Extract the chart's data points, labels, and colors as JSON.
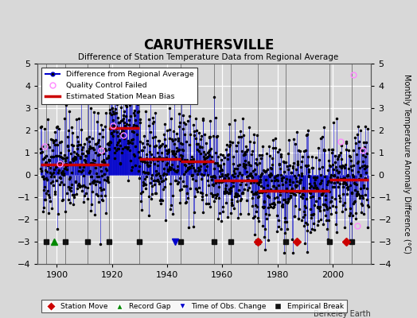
{
  "title": "CARUTHERSVILLE",
  "subtitle": "Difference of Station Temperature Data from Regional Average",
  "ylabel_right": "Monthly Temperature Anomaly Difference (°C)",
  "xlim": [
    1893,
    2014
  ],
  "ylim": [
    -4,
    5
  ],
  "yticks": [
    -4,
    -3,
    -2,
    -1,
    0,
    1,
    2,
    3,
    4,
    5
  ],
  "xticks": [
    1900,
    1920,
    1940,
    1960,
    1980,
    2000
  ],
  "background_color": "#d8d8d8",
  "plot_bg_color": "#d8d8d8",
  "grid_color": "#ffffff",
  "line_color": "#0000cc",
  "dot_color": "#000000",
  "bias_color": "#cc0000",
  "qc_color": "#ff88ff",
  "station_move_color": "#cc0000",
  "record_gap_color": "#008800",
  "tobs_color": "#0000cc",
  "emp_break_color": "#111111",
  "seed": 42,
  "start_year": 1894,
  "end_year": 2013,
  "bias_segments": [
    {
      "start": 1894,
      "end": 1919,
      "bias": 0.45
    },
    {
      "start": 1919,
      "end": 1930,
      "bias": 2.1
    },
    {
      "start": 1930,
      "end": 1945,
      "bias": 0.7
    },
    {
      "start": 1945,
      "end": 1957,
      "bias": 0.6
    },
    {
      "start": 1957,
      "end": 1973,
      "bias": -0.25
    },
    {
      "start": 1973,
      "end": 1983,
      "bias": -0.7
    },
    {
      "start": 1983,
      "end": 1999,
      "bias": -0.7
    },
    {
      "start": 1999,
      "end": 2009,
      "bias": -0.2
    },
    {
      "start": 2009,
      "end": 2013,
      "bias": -0.2
    }
  ],
  "station_moves": [
    1973,
    1987,
    2005
  ],
  "record_gaps": [
    1899
  ],
  "tobs_changes": [
    1943
  ],
  "emp_breaks": [
    1896,
    1903,
    1911,
    1919,
    1930,
    1945,
    1957,
    1963,
    1973,
    1983,
    1999,
    2007
  ],
  "qc_fails": [
    {
      "year": 1895.5,
      "val": 1.3
    },
    {
      "year": 1901.0,
      "val": 0.5
    },
    {
      "year": 1916.0,
      "val": 1.1
    },
    {
      "year": 1920.5,
      "val": 2.2
    },
    {
      "year": 1924.0,
      "val": 1.8
    },
    {
      "year": 2003.0,
      "val": 1.5
    },
    {
      "year": 2007.5,
      "val": 4.5
    },
    {
      "year": 2009.0,
      "val": -2.3
    },
    {
      "year": 2011.0,
      "val": 1.1
    }
  ],
  "figsize": [
    5.24,
    4.0
  ],
  "dpi": 100
}
